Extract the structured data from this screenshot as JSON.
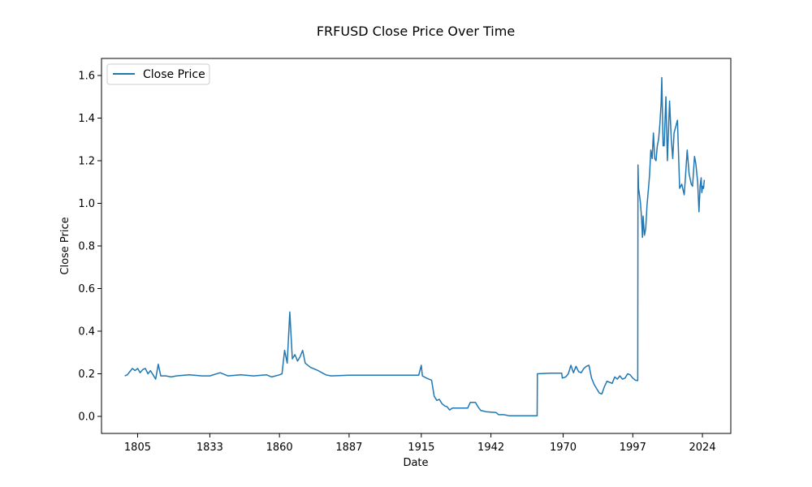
{
  "chart_data": {
    "type": "line",
    "title": "FRFUSD Close Price Over Time",
    "xlabel": "Date",
    "ylabel": "Close Price",
    "xlim": [
      "1791-01-01",
      "2035-01-01"
    ],
    "ylim": [
      -0.08,
      1.68
    ],
    "x_ticks": [
      "1805",
      "1833",
      "1860",
      "1887",
      "1915",
      "1942",
      "1970",
      "1997",
      "2024"
    ],
    "y_ticks": [
      "0.0",
      "0.2",
      "0.4",
      "0.6",
      "0.8",
      "1.0",
      "1.2",
      "1.4",
      "1.6"
    ],
    "grid": false,
    "legend_position": "top-left",
    "color": "#1f77b4",
    "series": [
      {
        "name": "Close Price",
        "points": [
          [
            "1800-01-01",
            0.19
          ],
          [
            "1801-01-01",
            0.195
          ],
          [
            "1802-01-01",
            0.21
          ],
          [
            "1803-01-01",
            0.225
          ],
          [
            "1804-01-01",
            0.215
          ],
          [
            "1805-01-01",
            0.225
          ],
          [
            "1806-01-01",
            0.205
          ],
          [
            "1807-01-01",
            0.22
          ],
          [
            "1808-01-01",
            0.225
          ],
          [
            "1809-01-01",
            0.2
          ],
          [
            "1810-01-01",
            0.215
          ],
          [
            "1811-01-01",
            0.195
          ],
          [
            "1812-01-01",
            0.175
          ],
          [
            "1813-01-01",
            0.245
          ],
          [
            "1814-01-01",
            0.19
          ],
          [
            "1816-01-01",
            0.19
          ],
          [
            "1818-01-01",
            0.185
          ],
          [
            "1820-01-01",
            0.19
          ],
          [
            "1825-01-01",
            0.195
          ],
          [
            "1830-01-01",
            0.19
          ],
          [
            "1833-01-01",
            0.19
          ],
          [
            "1837-01-01",
            0.205
          ],
          [
            "1840-01-01",
            0.19
          ],
          [
            "1845-01-01",
            0.195
          ],
          [
            "1850-01-01",
            0.19
          ],
          [
            "1855-01-01",
            0.195
          ],
          [
            "1857-01-01",
            0.185
          ],
          [
            "1860-01-01",
            0.195
          ],
          [
            "1861-01-01",
            0.2
          ],
          [
            "1862-01-01",
            0.31
          ],
          [
            "1863-01-01",
            0.25
          ],
          [
            "1864-01-01",
            0.49
          ],
          [
            "1865-01-01",
            0.27
          ],
          [
            "1866-01-01",
            0.29
          ],
          [
            "1867-01-01",
            0.26
          ],
          [
            "1868-01-01",
            0.28
          ],
          [
            "1869-01-01",
            0.31
          ],
          [
            "1870-01-01",
            0.25
          ],
          [
            "1872-01-01",
            0.23
          ],
          [
            "1875-01-01",
            0.215
          ],
          [
            "1878-01-01",
            0.195
          ],
          [
            "1880-01-01",
            0.19
          ],
          [
            "1887-01-01",
            0.193
          ],
          [
            "1895-01-01",
            0.193
          ],
          [
            "1905-01-01",
            0.193
          ],
          [
            "1914-01-01",
            0.193
          ],
          [
            "1915-01-01",
            0.24
          ],
          [
            "1915-06-01",
            0.19
          ],
          [
            "1917-01-01",
            0.18
          ],
          [
            "1919-01-01",
            0.17
          ],
          [
            "1920-01-01",
            0.095
          ],
          [
            "1921-01-01",
            0.075
          ],
          [
            "1922-01-01",
            0.08
          ],
          [
            "1923-01-01",
            0.06
          ],
          [
            "1924-01-01",
            0.05
          ],
          [
            "1925-01-01",
            0.045
          ],
          [
            "1926-01-01",
            0.03
          ],
          [
            "1927-01-01",
            0.039
          ],
          [
            "1930-01-01",
            0.039
          ],
          [
            "1933-01-01",
            0.039
          ],
          [
            "1934-01-01",
            0.066
          ],
          [
            "1936-01-01",
            0.066
          ],
          [
            "1937-01-01",
            0.045
          ],
          [
            "1938-01-01",
            0.028
          ],
          [
            "1939-01-01",
            0.025
          ],
          [
            "1940-01-01",
            0.022
          ],
          [
            "1942-01-01",
            0.02
          ],
          [
            "1944-01-01",
            0.018
          ],
          [
            "1945-01-01",
            0.008
          ],
          [
            "1947-01-01",
            0.008
          ],
          [
            "1949-01-01",
            0.003
          ],
          [
            "1955-01-01",
            0.003
          ],
          [
            "1959-12-01",
            0.003
          ],
          [
            "1960-01-01",
            0.2
          ],
          [
            "1965-01-01",
            0.203
          ],
          [
            "1969-06-01",
            0.203
          ],
          [
            "1969-09-01",
            0.18
          ],
          [
            "1971-01-01",
            0.185
          ],
          [
            "1972-01-01",
            0.2
          ],
          [
            "1973-01-01",
            0.24
          ],
          [
            "1974-01-01",
            0.205
          ],
          [
            "1975-01-01",
            0.235
          ],
          [
            "1976-01-01",
            0.21
          ],
          [
            "1977-01-01",
            0.205
          ],
          [
            "1978-01-01",
            0.225
          ],
          [
            "1979-01-01",
            0.235
          ],
          [
            "1980-01-01",
            0.24
          ],
          [
            "1981-01-01",
            0.18
          ],
          [
            "1982-01-01",
            0.15
          ],
          [
            "1983-01-01",
            0.13
          ],
          [
            "1984-01-01",
            0.11
          ],
          [
            "1985-01-01",
            0.105
          ],
          [
            "1986-01-01",
            0.14
          ],
          [
            "1987-01-01",
            0.165
          ],
          [
            "1988-01-01",
            0.16
          ],
          [
            "1989-01-01",
            0.155
          ],
          [
            "1990-01-01",
            0.185
          ],
          [
            "1991-01-01",
            0.175
          ],
          [
            "1992-01-01",
            0.19
          ],
          [
            "1993-01-01",
            0.175
          ],
          [
            "1994-01-01",
            0.18
          ],
          [
            "1995-01-01",
            0.2
          ],
          [
            "1996-01-01",
            0.195
          ],
          [
            "1997-01-01",
            0.18
          ],
          [
            "1998-01-01",
            0.17
          ],
          [
            "1998-12-01",
            0.168
          ],
          [
            "1999-01-01",
            1.18
          ],
          [
            "1999-04-01",
            1.07
          ],
          [
            "1999-07-01",
            1.05
          ],
          [
            "2000-01-01",
            1.0
          ],
          [
            "2000-06-01",
            0.93
          ],
          [
            "2000-10-01",
            0.84
          ],
          [
            "2001-01-01",
            0.94
          ],
          [
            "2001-07-01",
            0.85
          ],
          [
            "2002-01-01",
            0.88
          ],
          [
            "2002-07-01",
            0.99
          ],
          [
            "2003-01-01",
            1.06
          ],
          [
            "2003-07-01",
            1.13
          ],
          [
            "2004-01-01",
            1.25
          ],
          [
            "2004-07-01",
            1.21
          ],
          [
            "2005-01-01",
            1.33
          ],
          [
            "2005-07-01",
            1.21
          ],
          [
            "2006-01-01",
            1.2
          ],
          [
            "2006-07-01",
            1.27
          ],
          [
            "2007-01-01",
            1.3
          ],
          [
            "2007-07-01",
            1.37
          ],
          [
            "2008-01-01",
            1.47
          ],
          [
            "2008-04-01",
            1.59
          ],
          [
            "2008-10-01",
            1.27
          ],
          [
            "2009-03-01",
            1.27
          ],
          [
            "2009-11-01",
            1.5
          ],
          [
            "2010-06-01",
            1.2
          ],
          [
            "2011-04-01",
            1.48
          ],
          [
            "2011-12-01",
            1.3
          ],
          [
            "2012-07-01",
            1.21
          ],
          [
            "2013-01-01",
            1.33
          ],
          [
            "2014-05-01",
            1.39
          ],
          [
            "2015-03-01",
            1.07
          ],
          [
            "2016-01-01",
            1.09
          ],
          [
            "2016-12-01",
            1.04
          ],
          [
            "2017-06-01",
            1.12
          ],
          [
            "2018-02-01",
            1.25
          ],
          [
            "2018-11-01",
            1.14
          ],
          [
            "2019-09-01",
            1.09
          ],
          [
            "2020-03-01",
            1.08
          ],
          [
            "2020-12-01",
            1.22
          ],
          [
            "2021-06-01",
            1.19
          ],
          [
            "2022-03-01",
            1.1
          ],
          [
            "2022-09-01",
            0.96
          ],
          [
            "2023-02-01",
            1.08
          ],
          [
            "2023-07-01",
            1.12
          ],
          [
            "2023-10-01",
            1.05
          ],
          [
            "2024-02-01",
            1.08
          ],
          [
            "2024-06-01",
            1.07
          ],
          [
            "2024-10-01",
            1.11
          ]
        ]
      }
    ]
  }
}
